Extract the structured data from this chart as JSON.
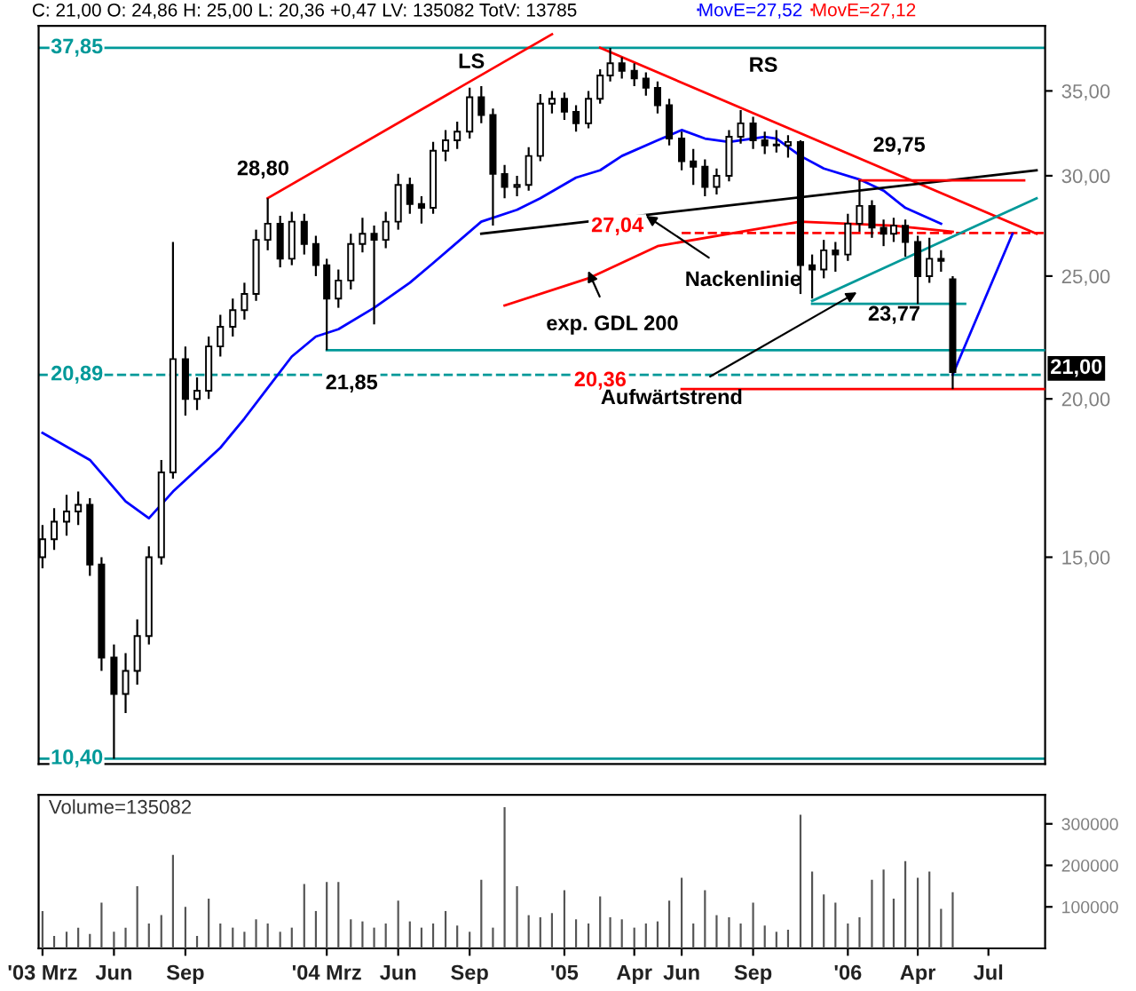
{
  "chart_data": [
    {
      "type": "candlestick",
      "title": "C: 21,00 O: 24,86 H: 25,00 L: 20,36 +0,47 LV: 135082 TotV: 13785",
      "x": [
        "2003-03-01",
        "2003-03-16",
        "2003-04-01",
        "2003-04-16",
        "2003-05-01",
        "2003-05-16",
        "2003-06-01",
        "2003-06-16",
        "2003-07-01",
        "2003-07-16",
        "2003-08-01",
        "2003-08-16",
        "2003-09-01",
        "2003-09-16",
        "2003-10-01",
        "2003-10-16",
        "2003-11-01",
        "2003-11-16",
        "2003-12-01",
        "2003-12-16",
        "2004-01-01",
        "2004-01-16",
        "2004-02-01",
        "2004-02-16",
        "2004-03-01",
        "2004-03-16",
        "2004-04-01",
        "2004-04-16",
        "2004-05-01",
        "2004-05-16",
        "2004-06-01",
        "2004-06-16",
        "2004-07-01",
        "2004-07-16",
        "2004-08-01",
        "2004-08-16",
        "2004-09-01",
        "2004-09-16",
        "2004-10-01",
        "2004-10-16",
        "2004-11-01",
        "2004-11-16",
        "2004-12-01",
        "2004-12-16",
        "2005-01-01",
        "2005-01-16",
        "2005-02-01",
        "2005-02-16",
        "2005-03-01",
        "2005-03-16",
        "2005-04-01",
        "2005-04-16",
        "2005-05-01",
        "2005-05-16",
        "2005-06-01",
        "2005-06-16",
        "2005-07-01",
        "2005-07-16",
        "2005-08-01",
        "2005-08-16",
        "2005-09-01",
        "2005-09-16",
        "2005-10-01",
        "2005-10-16",
        "2005-11-01",
        "2005-11-16",
        "2005-12-01",
        "2005-12-16",
        "2006-01-01",
        "2006-01-16",
        "2006-02-01",
        "2006-02-16",
        "2006-03-01",
        "2006-03-16",
        "2006-04-01",
        "2006-04-16",
        "2006-05-01",
        "2006-05-16"
      ],
      "ohlc": [
        [
          15.0,
          15.9,
          14.7,
          15.5
        ],
        [
          15.5,
          16.4,
          15.2,
          16.0
        ],
        [
          16.0,
          16.8,
          15.6,
          16.3
        ],
        [
          16.3,
          16.9,
          15.9,
          16.5
        ],
        [
          16.5,
          16.7,
          14.5,
          14.8
        ],
        [
          14.8,
          15.0,
          12.2,
          12.5
        ],
        [
          12.5,
          12.8,
          10.4,
          11.7
        ],
        [
          11.7,
          12.6,
          11.3,
          12.2
        ],
        [
          12.2,
          13.4,
          11.9,
          13.0
        ],
        [
          13.0,
          15.3,
          12.8,
          15.0
        ],
        [
          15.0,
          17.9,
          14.8,
          17.5
        ],
        [
          17.5,
          26.6,
          17.3,
          21.5
        ],
        [
          21.5,
          22.0,
          19.4,
          20.0
        ],
        [
          20.0,
          20.8,
          19.6,
          20.3
        ],
        [
          20.3,
          22.4,
          20.0,
          22.0
        ],
        [
          22.0,
          23.3,
          21.6,
          22.8
        ],
        [
          22.8,
          24.0,
          22.4,
          23.5
        ],
        [
          23.5,
          24.7,
          23.1,
          24.2
        ],
        [
          24.2,
          27.2,
          23.9,
          26.7
        ],
        [
          26.7,
          28.8,
          26.2,
          27.5
        ],
        [
          27.5,
          27.9,
          25.4,
          25.8
        ],
        [
          25.8,
          28.1,
          25.5,
          27.6
        ],
        [
          27.6,
          28.0,
          26.0,
          26.5
        ],
        [
          26.5,
          26.9,
          25.0,
          25.5
        ],
        [
          25.5,
          25.8,
          21.85,
          24.0
        ],
        [
          24.0,
          25.3,
          23.6,
          24.8
        ],
        [
          24.8,
          27.0,
          24.4,
          26.5
        ],
        [
          26.5,
          27.8,
          26.1,
          27.0
        ],
        [
          27.0,
          27.4,
          22.9,
          26.7
        ],
        [
          26.7,
          28.1,
          26.3,
          27.6
        ],
        [
          27.6,
          30.1,
          27.2,
          29.5
        ],
        [
          29.5,
          29.9,
          28.0,
          28.5
        ],
        [
          28.5,
          28.9,
          27.5,
          28.3
        ],
        [
          28.3,
          31.9,
          28.0,
          31.4
        ],
        [
          31.4,
          32.6,
          30.8,
          32.0
        ],
        [
          32.0,
          33.1,
          31.5,
          32.5
        ],
        [
          32.5,
          35.2,
          32.1,
          34.6
        ],
        [
          34.6,
          35.3,
          33.0,
          33.5
        ],
        [
          33.5,
          33.9,
          27.4,
          30.1
        ],
        [
          30.1,
          30.6,
          28.8,
          29.4
        ],
        [
          29.4,
          30.0,
          28.9,
          29.5
        ],
        [
          29.5,
          31.6,
          29.2,
          31.1
        ],
        [
          31.1,
          34.8,
          30.8,
          34.2
        ],
        [
          34.2,
          35.0,
          33.6,
          34.5
        ],
        [
          34.5,
          34.9,
          33.2,
          33.7
        ],
        [
          33.7,
          34.1,
          32.5,
          33.0
        ],
        [
          33.0,
          35.0,
          32.7,
          34.5
        ],
        [
          34.5,
          36.4,
          34.2,
          36.0
        ],
        [
          36.0,
          37.85,
          35.6,
          36.8
        ],
        [
          36.8,
          37.2,
          35.8,
          36.3
        ],
        [
          36.3,
          36.8,
          35.3,
          35.8
        ],
        [
          35.8,
          36.2,
          34.7,
          35.2
        ],
        [
          35.2,
          35.6,
          33.6,
          34.1
        ],
        [
          34.1,
          34.5,
          31.7,
          32.1
        ],
        [
          32.1,
          32.5,
          30.3,
          30.8
        ],
        [
          30.8,
          31.5,
          29.5,
          30.5
        ],
        [
          30.5,
          30.9,
          28.9,
          29.4
        ],
        [
          29.4,
          30.4,
          29.0,
          30.0
        ],
        [
          30.0,
          32.6,
          29.7,
          32.2
        ],
        [
          32.2,
          33.8,
          31.8,
          33.0
        ],
        [
          33.0,
          33.4,
          31.5,
          32.0
        ],
        [
          32.0,
          32.5,
          31.2,
          31.7
        ],
        [
          31.7,
          32.6,
          31.3,
          31.7
        ],
        [
          31.7,
          32.3,
          31.0,
          31.9
        ],
        [
          31.9,
          32.0,
          24.2,
          25.5
        ],
        [
          25.5,
          26.0,
          24.0,
          25.3
        ],
        [
          25.3,
          26.7,
          24.9,
          26.2
        ],
        [
          26.2,
          26.6,
          25.2,
          26.0
        ],
        [
          26.0,
          28.0,
          25.7,
          27.5
        ],
        [
          27.5,
          29.75,
          27.1,
          28.4
        ],
        [
          28.4,
          28.7,
          26.8,
          27.3
        ],
        [
          27.3,
          27.7,
          26.4,
          27.0
        ],
        [
          27.0,
          27.8,
          26.6,
          27.4
        ],
        [
          27.4,
          27.7,
          25.9,
          26.6
        ],
        [
          26.6,
          26.9,
          23.77,
          25.0
        ],
        [
          25.0,
          26.8,
          24.7,
          25.8
        ],
        [
          25.8,
          26.2,
          25.2,
          25.7
        ],
        [
          24.86,
          25.0,
          20.36,
          21.0
        ]
      ],
      "series": [
        {
          "name": "MovE=27,52",
          "type": "line",
          "color": "#0000ff",
          "x": [
            "2003-03-01",
            "2003-05-01",
            "2003-06-16",
            "2003-07-16",
            "2003-08-16",
            "2003-09-16",
            "2003-10-16",
            "2003-11-16",
            "2003-12-16",
            "2004-01-16",
            "2004-02-16",
            "2004-03-16",
            "2004-05-01",
            "2004-06-16",
            "2004-07-16",
            "2004-09-16",
            "2004-11-01",
            "2004-12-01",
            "2005-01-16",
            "2005-02-16",
            "2005-03-16",
            "2005-05-01",
            "2005-06-01",
            "2005-07-01",
            "2005-08-01",
            "2005-09-16",
            "2005-10-01",
            "2005-11-01",
            "2005-12-01",
            "2006-01-16",
            "2006-02-16",
            "2006-03-16",
            "2006-05-01"
          ],
          "values": [
            18.8,
            17.9,
            16.6,
            16.1,
            16.9,
            17.6,
            18.3,
            19.3,
            20.4,
            21.6,
            22.4,
            22.7,
            23.6,
            24.7,
            25.6,
            27.6,
            28.2,
            28.8,
            29.9,
            30.3,
            31.1,
            32.0,
            32.6,
            32.1,
            31.9,
            32.2,
            32.1,
            31.1,
            30.4,
            29.8,
            29.2,
            28.3,
            27.5
          ]
        },
        {
          "name": "MovE=27,12",
          "type": "line",
          "color": "#ff0000",
          "x": [
            "2004-10-16",
            "2005-02-01",
            "2005-05-01",
            "2005-09-01",
            "2005-10-01",
            "2005-11-01",
            "2006-03-01",
            "2006-05-16"
          ],
          "values": [
            23.7,
            24.9,
            26.4,
            27.2,
            27.4,
            27.6,
            27.4,
            27.1
          ]
        },
        {
          "type": "line",
          "color": "#ff0000",
          "x": [
            "2003-12-16",
            "2004-12-16"
          ],
          "values": [
            28.8,
            38.8
          ]
        },
        {
          "type": "line",
          "color": "#ff0000",
          "x": [
            "2005-02-16",
            "2006-09-01"
          ],
          "values": [
            37.85,
            27.0
          ]
        },
        {
          "type": "line",
          "color": "#000000",
          "x": [
            "2004-09-16",
            "2006-09-01"
          ],
          "values": [
            27.0,
            30.3
          ]
        },
        {
          "type": "line",
          "color": "#ff0000",
          "x": [
            "2006-01-16",
            "2006-08-16"
          ],
          "values": [
            29.75,
            29.75
          ]
        },
        {
          "type": "line",
          "color": "#ff0000",
          "line_style": "dashed",
          "x": [
            "2005-06-01",
            "2006-09-12"
          ],
          "values": [
            27.04,
            27.04
          ]
        },
        {
          "type": "line",
          "color": "#ff0000",
          "x": [
            "2005-06-01",
            "2006-09-12"
          ],
          "values": [
            20.36,
            20.36
          ]
        },
        {
          "type": "line",
          "color": "#009999",
          "x": [
            "2004-03-01",
            "2006-09-12"
          ],
          "values": [
            21.85,
            21.85
          ]
        },
        {
          "type": "line",
          "color": "#009999",
          "x": [
            "2005-11-16",
            "2006-06-01"
          ],
          "values": [
            23.77,
            23.77
          ]
        },
        {
          "type": "line",
          "color": "#009999",
          "x": [
            "2005-11-16",
            "2006-09-01"
          ],
          "values": [
            23.9,
            28.8
          ]
        },
        {
          "type": "line",
          "color": "#0000ff",
          "x": [
            "2006-05-16",
            "2006-08-01"
          ],
          "values": [
            20.9,
            27.0
          ]
        }
      ],
      "ref_lines": [
        {
          "axis": "y",
          "value": 37.85,
          "label": "37,85",
          "color": "#009999",
          "line_style": "solid"
        },
        {
          "axis": "y",
          "value": 20.89,
          "label": "20,89",
          "color": "#009999",
          "line_style": "dashed"
        },
        {
          "axis": "y",
          "value": 10.4,
          "label": "10,40",
          "color": "#009999",
          "line_style": "solid"
        }
      ],
      "annotations": [
        "LS",
        "RS",
        "28,80",
        "21,85",
        "29,75",
        "27,04",
        {
          "text": "Nackenlinie",
          "x": "2005-04-16",
          "y": 27.9
        },
        "exp. GDL 200",
        "23,77",
        "20,36",
        "Aufwärtstrend",
        "21,00"
      ],
      "log": true,
      "xlim": [
        "2003-02-24",
        "2006-09-12"
      ],
      "ylim": [
        10.3,
        39.4
      ],
      "yticks": [
        {
          "value": 15,
          "label": "15,00"
        },
        {
          "value": 20,
          "label": "20,00"
        },
        {
          "value": 25,
          "label": "25,00"
        },
        {
          "value": 30,
          "label": "30,00"
        },
        {
          "value": 35,
          "label": "35,00"
        }
      ],
      "tick_labels": "y",
      "legend": "top"
    },
    {
      "type": "bar",
      "title": "Volume=135082",
      "color": "#555555",
      "x": [
        "2003-03-01",
        "2003-03-16",
        "2003-04-01",
        "2003-04-16",
        "2003-05-01",
        "2003-05-16",
        "2003-06-01",
        "2003-06-16",
        "2003-07-01",
        "2003-07-16",
        "2003-08-01",
        "2003-08-16",
        "2003-09-01",
        "2003-09-16",
        "2003-10-01",
        "2003-10-16",
        "2003-11-01",
        "2003-11-16",
        "2003-12-01",
        "2003-12-16",
        "2004-01-01",
        "2004-01-16",
        "2004-02-01",
        "2004-02-16",
        "2004-03-01",
        "2004-03-16",
        "2004-04-01",
        "2004-04-16",
        "2004-05-01",
        "2004-05-16",
        "2004-06-01",
        "2004-06-16",
        "2004-07-01",
        "2004-07-16",
        "2004-08-01",
        "2004-08-16",
        "2004-09-01",
        "2004-09-16",
        "2004-10-01",
        "2004-10-16",
        "2004-11-01",
        "2004-11-16",
        "2004-12-01",
        "2004-12-16",
        "2005-01-01",
        "2005-01-16",
        "2005-02-01",
        "2005-02-16",
        "2005-03-01",
        "2005-03-16",
        "2005-04-01",
        "2005-04-16",
        "2005-05-01",
        "2005-05-16",
        "2005-06-01",
        "2005-06-16",
        "2005-07-01",
        "2005-07-16",
        "2005-08-01",
        "2005-08-16",
        "2005-09-01",
        "2005-09-16",
        "2005-10-01",
        "2005-10-16",
        "2005-11-01",
        "2005-11-16",
        "2005-12-01",
        "2005-12-16",
        "2006-01-01",
        "2006-01-16",
        "2006-02-01",
        "2006-02-16",
        "2006-03-01",
        "2006-03-16",
        "2006-04-01",
        "2006-04-16",
        "2006-05-01",
        "2006-05-16"
      ],
      "values": [
        90000,
        30000,
        40000,
        50000,
        35000,
        110000,
        40000,
        50000,
        150000,
        60000,
        80000,
        225000,
        100000,
        30000,
        120000,
        60000,
        50000,
        40000,
        70000,
        60000,
        40000,
        50000,
        155000,
        90000,
        160000,
        160000,
        70000,
        65000,
        50000,
        60000,
        115000,
        65000,
        50000,
        60000,
        90000,
        55000,
        40000,
        165000,
        50000,
        340000,
        150000,
        80000,
        75000,
        85000,
        140000,
        70000,
        60000,
        125000,
        75000,
        70000,
        50000,
        60000,
        65000,
        115000,
        170000,
        60000,
        140000,
        80000,
        75000,
        60000,
        110000,
        55000,
        40000,
        45000,
        322000,
        185000,
        130000,
        110000,
        60000,
        75000,
        165000,
        190000,
        120000,
        210000,
        170000,
        185000,
        95000,
        135082
      ],
      "xlim": [
        "2003-02-24",
        "2006-09-12"
      ],
      "ylim": [
        0,
        370000
      ],
      "yticks": [
        100000,
        200000,
        300000
      ],
      "xticks": [
        {
          "value": "2003-03-01",
          "label": "'03 Mrz"
        },
        {
          "value": "2003-06-01",
          "label": "Jun"
        },
        {
          "value": "2003-09-01",
          "label": "Sep"
        },
        {
          "value": "2004-03-01",
          "label": "'04 Mrz"
        },
        {
          "value": "2004-06-01",
          "label": "Jun"
        },
        {
          "value": "2004-09-01",
          "label": "Sep"
        },
        {
          "value": "2005-01-01",
          "label": "'05"
        },
        {
          "value": "2005-04-01",
          "label": "Apr"
        },
        {
          "value": "2005-06-01",
          "label": "Jun"
        },
        {
          "value": "2005-09-01",
          "label": "Sep"
        },
        {
          "value": "2006-01-01",
          "label": "'06"
        },
        {
          "value": "2006-04-01",
          "label": "Apr"
        },
        {
          "value": "2006-07-01",
          "label": "Jul"
        }
      ]
    }
  ]
}
